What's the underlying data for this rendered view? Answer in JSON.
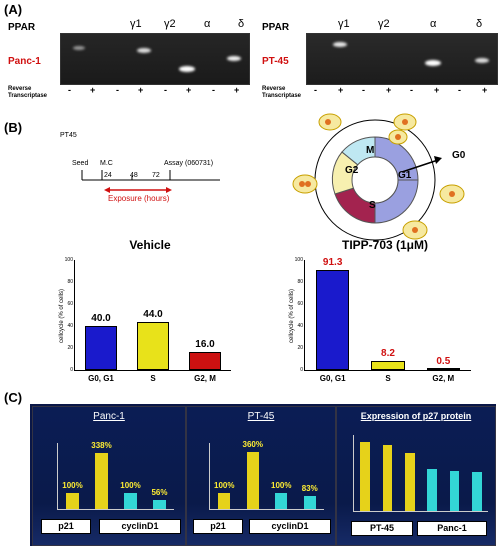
{
  "panel_a": {
    "label": "(A)",
    "left": {
      "header": "PPAR",
      "isoforms": [
        "γ1",
        "γ2",
        "α",
        "δ"
      ],
      "cell_line": "Panc-1",
      "rt_label_1": "Reverse",
      "rt_label_2": "Transcriptase",
      "signs": [
        "-",
        "+",
        "-",
        "+",
        "-",
        "+",
        "-",
        "+"
      ]
    },
    "right": {
      "header": "PPAR",
      "isoforms": [
        "γ1",
        "γ2",
        "α",
        "δ"
      ],
      "cell_line": "PT-45",
      "rt_label_1": "Reverse",
      "rt_label_2": "Transcriptase",
      "signs": [
        "-",
        "+",
        "-",
        "+",
        "-",
        "+",
        "-",
        "+"
      ]
    }
  },
  "panel_b": {
    "label": "(B)",
    "timeline": {
      "cell_line": "PT45",
      "seed": "Seed",
      "mc": "M.C",
      "assay": "Assay (060731)",
      "ticks": [
        "24",
        "48",
        "72"
      ],
      "exposure": "Exposure (hours)"
    },
    "cycle": {
      "phases": [
        "M",
        "G2",
        "S",
        "G1"
      ],
      "g0": "G0"
    },
    "charts": [
      {
        "title": "Vehicle",
        "ylabel": "cellcycle (% of cells)",
        "yticks": [
          "100",
          "80",
          "60",
          "40",
          "20",
          "0"
        ],
        "categories": [
          "G0, G1",
          "S",
          "G2, M"
        ],
        "value_labels": [
          "40.0",
          "44.0",
          "16.0"
        ]
      },
      {
        "title": "TIPP-703 (1μM)",
        "ylabel": "cellcycle (% of cells)",
        "yticks": [
          "100",
          "80",
          "60",
          "40",
          "20",
          "0"
        ],
        "categories": [
          "G0, G1",
          "S",
          "G2, M"
        ],
        "value_labels": [
          "91.3",
          "8.2",
          "0.5"
        ]
      }
    ]
  },
  "panel_c": {
    "label": "(C)",
    "panc": {
      "title": "Panc-1",
      "pct": [
        "100%",
        "338%",
        "100%",
        "56%"
      ],
      "boxes": [
        "p21",
        "cyclinD1"
      ]
    },
    "pt": {
      "title": "PT-45",
      "pct": [
        "100%",
        "360%",
        "100%",
        "83%"
      ],
      "boxes": [
        "p21",
        "cyclinD1"
      ]
    },
    "p27": {
      "title": "Expression of p27 protein",
      "boxes": [
        "PT-45",
        "Panc-1"
      ]
    }
  },
  "chart_data": [
    {
      "type": "bar",
      "title": "Vehicle",
      "ylabel": "cellcycle (% of cells)",
      "categories": [
        "G0, G1",
        "S",
        "G2, M"
      ],
      "values": [
        40.0,
        44.0,
        16.0
      ],
      "ylim": [
        0,
        100
      ],
      "colors": [
        "#1a1acc",
        "#e8e21a",
        "#cc1111"
      ]
    },
    {
      "type": "bar",
      "title": "TIPP-703 (1μM)",
      "ylabel": "cellcycle (% of cells)",
      "categories": [
        "G0, G1",
        "S",
        "G2, M"
      ],
      "values": [
        91.3,
        8.2,
        0.5
      ],
      "ylim": [
        0,
        100
      ],
      "colors": [
        "#1a1acc",
        "#e8e21a",
        "#cc1111"
      ]
    },
    {
      "type": "bar",
      "title": "Panc-1",
      "categories": [
        "p21 vehicle",
        "p21 TIPP",
        "cyclinD1 vehicle",
        "cyclinD1 TIPP"
      ],
      "values": [
        100,
        338,
        100,
        56
      ],
      "colors": [
        "#e6d21a",
        "#e6d21a",
        "#33d6d6",
        "#33d6d6"
      ]
    },
    {
      "type": "bar",
      "title": "PT-45",
      "categories": [
        "p21 vehicle",
        "p21 TIPP",
        "cyclinD1 vehicle",
        "cyclinD1 TIPP"
      ],
      "values": [
        100,
        360,
        100,
        83
      ],
      "colors": [
        "#e6d21a",
        "#e6d21a",
        "#33d6d6",
        "#33d6d6"
      ]
    },
    {
      "type": "bar",
      "title": "Expression of p27 protein",
      "categories": [
        "PT-45 a",
        "PT-45 b",
        "PT-45 c",
        "Panc-1 a",
        "Panc-1 b",
        "Panc-1 c"
      ],
      "values": [
        1.0,
        0.96,
        0.84,
        0.61,
        0.58,
        0.56
      ],
      "colors": [
        "#e6d21a",
        "#e6d21a",
        "#e6d21a",
        "#33d6d6",
        "#33d6d6",
        "#33d6d6"
      ]
    }
  ]
}
